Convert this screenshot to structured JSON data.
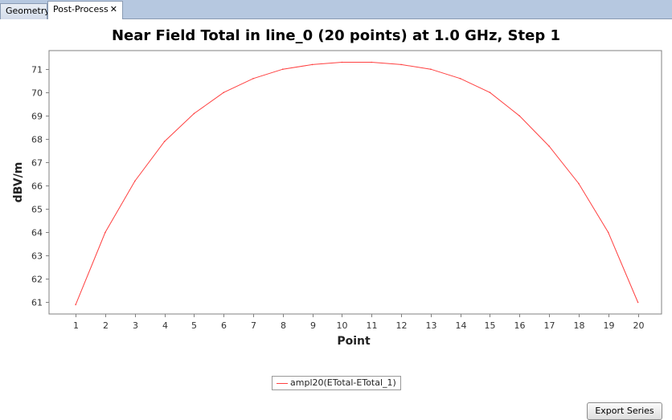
{
  "tabs": [
    {
      "label": "Geometry",
      "active": false
    },
    {
      "label": "Post-Process",
      "active": true,
      "close_glyph": "✕"
    }
  ],
  "export_button": {
    "label": "Export Series"
  },
  "chart_data": {
    "type": "line",
    "title": "Near Field Total in line_0 (20 points) at 1.0 GHz, Step 1",
    "xlabel": "Point",
    "ylabel": "dBV/m",
    "x": [
      1,
      2,
      3,
      4,
      5,
      6,
      7,
      8,
      9,
      10,
      11,
      12,
      13,
      14,
      15,
      16,
      17,
      18,
      19,
      20
    ],
    "xlim": [
      0.1,
      20.8
    ],
    "ylim": [
      60.5,
      71.8
    ],
    "x_ticks": [
      1,
      2,
      3,
      4,
      5,
      6,
      7,
      8,
      9,
      10,
      11,
      12,
      13,
      14,
      15,
      16,
      17,
      18,
      19,
      20
    ],
    "y_ticks": [
      61,
      62,
      63,
      64,
      65,
      66,
      67,
      68,
      69,
      70,
      71
    ],
    "grid": true,
    "legend_position": "bottom-center",
    "series": [
      {
        "name": "ampl20(ETotal-ETotal_1)",
        "color": "#ff4040",
        "values": [
          60.9,
          64.0,
          66.2,
          67.9,
          69.1,
          70.0,
          70.6,
          71.0,
          71.2,
          71.3,
          71.3,
          71.2,
          71.0,
          70.6,
          70.0,
          69.0,
          67.7,
          66.1,
          64.0,
          61.0
        ]
      }
    ]
  }
}
